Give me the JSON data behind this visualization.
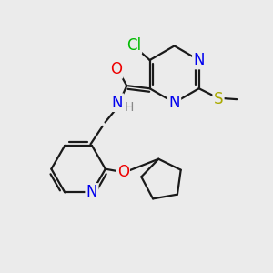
{
  "bg_color": "#ebebeb",
  "bond_color": "#1a1a1a",
  "atoms": {
    "Cl": {
      "color": "#00bb00",
      "fontsize": 12
    },
    "N": {
      "color": "#0000ee",
      "fontsize": 12
    },
    "O": {
      "color": "#ee0000",
      "fontsize": 12
    },
    "S": {
      "color": "#aaaa00",
      "fontsize": 12
    },
    "H": {
      "color": "#888888",
      "fontsize": 10
    }
  },
  "lw": 1.6,
  "dbo": 0.12
}
